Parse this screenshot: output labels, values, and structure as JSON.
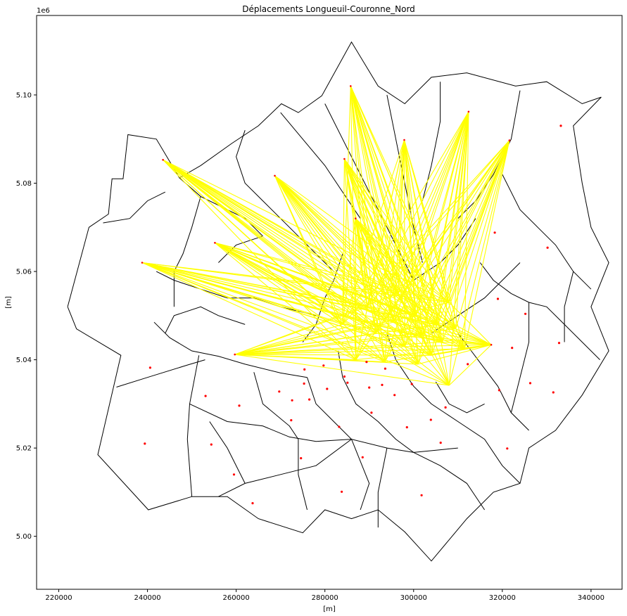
{
  "chart_data": {
    "type": "scatter",
    "title": "Déplacements Longueuil-Couronne_Nord",
    "xlabel": "[m]",
    "ylabel": "[m]",
    "y_offset_label": "1e6",
    "xlim": [
      215000,
      347000
    ],
    "ylim": [
      4988000,
      5118000
    ],
    "x_ticks": [
      220000,
      240000,
      260000,
      280000,
      300000,
      320000,
      340000
    ],
    "x_tick_labels": [
      "220000",
      "240000",
      "260000",
      "280000",
      "300000",
      "320000",
      "340000"
    ],
    "y_ticks": [
      5000000,
      5020000,
      5040000,
      5060000,
      5080000,
      5100000
    ],
    "y_tick_labels": [
      "5.00",
      "5.02",
      "5.04",
      "5.06",
      "5.08",
      "5.10"
    ],
    "grid": false,
    "colors": {
      "flow_lines": "#ffff00",
      "centroids": "#ff0000",
      "boundaries": "#000000"
    },
    "origins": [
      {
        "x": 243500,
        "y": 5085300
      },
      {
        "x": 238800,
        "y": 5062000
      },
      {
        "x": 255200,
        "y": 5066500
      },
      {
        "x": 268700,
        "y": 5081700
      },
      {
        "x": 285800,
        "y": 5102000
      },
      {
        "x": 284400,
        "y": 5085500
      },
      {
        "x": 297900,
        "y": 5089800
      },
      {
        "x": 312400,
        "y": 5096200
      },
      {
        "x": 321600,
        "y": 5089700
      },
      {
        "x": 259700,
        "y": 5041200
      },
      {
        "x": 286900,
        "y": 5072000
      },
      {
        "x": 317500,
        "y": 5043400
      }
    ],
    "destinations": [
      {
        "x": 287000,
        "y": 5040000
      },
      {
        "x": 291500,
        "y": 5046000
      },
      {
        "x": 295500,
        "y": 5048500
      },
      {
        "x": 298000,
        "y": 5043000
      },
      {
        "x": 300500,
        "y": 5050000
      },
      {
        "x": 302000,
        "y": 5045500
      },
      {
        "x": 304000,
        "y": 5041000
      },
      {
        "x": 305500,
        "y": 5048000
      },
      {
        "x": 306500,
        "y": 5044000
      },
      {
        "x": 308000,
        "y": 5053000
      },
      {
        "x": 309500,
        "y": 5047000
      },
      {
        "x": 301000,
        "y": 5039000
      },
      {
        "x": 308000,
        "y": 5034200
      },
      {
        "x": 296500,
        "y": 5055000
      },
      {
        "x": 289500,
        "y": 5052000
      },
      {
        "x": 311500,
        "y": 5042500
      },
      {
        "x": 293500,
        "y": 5039500
      },
      {
        "x": 284000,
        "y": 5048000
      }
    ],
    "centroids": [
      {
        "x": 333200,
        "y": 5093000
      },
      {
        "x": 318300,
        "y": 5068800
      },
      {
        "x": 330200,
        "y": 5065400
      },
      {
        "x": 319000,
        "y": 5053800
      },
      {
        "x": 325200,
        "y": 5050400
      },
      {
        "x": 332800,
        "y": 5043800
      },
      {
        "x": 322200,
        "y": 5042700
      },
      {
        "x": 326300,
        "y": 5034700
      },
      {
        "x": 331500,
        "y": 5032600
      },
      {
        "x": 319300,
        "y": 5033100
      },
      {
        "x": 321100,
        "y": 5019900
      },
      {
        "x": 306100,
        "y": 5021200
      },
      {
        "x": 303900,
        "y": 5026400
      },
      {
        "x": 298500,
        "y": 5024700
      },
      {
        "x": 301800,
        "y": 5009300
      },
      {
        "x": 283800,
        "y": 5010100
      },
      {
        "x": 288500,
        "y": 5017900
      },
      {
        "x": 290500,
        "y": 5028000
      },
      {
        "x": 283200,
        "y": 5024800
      },
      {
        "x": 272400,
        "y": 5026300
      },
      {
        "x": 274600,
        "y": 5017700
      },
      {
        "x": 263700,
        "y": 5007500
      },
      {
        "x": 259500,
        "y": 5014000
      },
      {
        "x": 254400,
        "y": 5020800
      },
      {
        "x": 239400,
        "y": 5021000
      },
      {
        "x": 240600,
        "y": 5038200
      },
      {
        "x": 253100,
        "y": 5031800
      },
      {
        "x": 260700,
        "y": 5029600
      },
      {
        "x": 269700,
        "y": 5032800
      },
      {
        "x": 272600,
        "y": 5030800
      },
      {
        "x": 276500,
        "y": 5031000
      },
      {
        "x": 280500,
        "y": 5033400
      },
      {
        "x": 285100,
        "y": 5034800
      },
      {
        "x": 290000,
        "y": 5033700
      },
      {
        "x": 292900,
        "y": 5034300
      },
      {
        "x": 295700,
        "y": 5032000
      },
      {
        "x": 299600,
        "y": 5034500
      },
      {
        "x": 307200,
        "y": 5029200
      },
      {
        "x": 312200,
        "y": 5039000
      },
      {
        "x": 275400,
        "y": 5037800
      },
      {
        "x": 279700,
        "y": 5038700
      },
      {
        "x": 293600,
        "y": 5038000
      },
      {
        "x": 284400,
        "y": 5036200
      },
      {
        "x": 275300,
        "y": 5034600
      },
      {
        "x": 289400,
        "y": 5039500
      }
    ],
    "boundary_outline": [
      [
        222000,
        5052000
      ],
      [
        226800,
        5070000
      ],
      [
        231200,
        5073000
      ],
      [
        232000,
        5081000
      ],
      [
        234500,
        5081000
      ],
      [
        235600,
        5091000
      ],
      [
        242000,
        5090000
      ],
      [
        247200,
        5081200
      ],
      [
        252000,
        5084000
      ],
      [
        259000,
        5089000
      ],
      [
        265000,
        5093000
      ],
      [
        270200,
        5098000
      ],
      [
        274000,
        5096000
      ],
      [
        279300,
        5099800
      ],
      [
        286000,
        5112000
      ],
      [
        292000,
        5102000
      ],
      [
        298000,
        5098000
      ],
      [
        304000,
        5104000
      ],
      [
        312000,
        5105000
      ],
      [
        323000,
        5102000
      ],
      [
        330000,
        5103000
      ],
      [
        338000,
        5098000
      ],
      [
        342300,
        5099500
      ],
      [
        336000,
        5093000
      ],
      [
        338000,
        5080000
      ],
      [
        340000,
        5070000
      ],
      [
        344000,
        5062000
      ],
      [
        340000,
        5052000
      ],
      [
        344000,
        5042000
      ],
      [
        338000,
        5032000
      ],
      [
        332000,
        5024000
      ],
      [
        326000,
        5020000
      ],
      [
        324000,
        5012000
      ],
      [
        318000,
        5010000
      ],
      [
        312000,
        5004000
      ],
      [
        304000,
        4994400
      ],
      [
        298000,
        5001000
      ],
      [
        292000,
        5006000
      ],
      [
        286000,
        5004000
      ],
      [
        280000,
        5006000
      ],
      [
        275000,
        5000800
      ],
      [
        265000,
        5004000
      ],
      [
        258000,
        5009000
      ],
      [
        250000,
        5009000
      ],
      [
        240200,
        5006000
      ],
      [
        228800,
        5018500
      ],
      [
        234000,
        5041000
      ],
      [
        224000,
        5047000
      ],
      [
        222000,
        5052000
      ]
    ],
    "boundary_lines": [
      [
        [
          233000,
          5033800
        ],
        [
          240000,
          5036000
        ],
        [
          249000,
          5038800
        ],
        [
          253000,
          5040000
        ]
      ],
      [
        [
          241500,
          5048500
        ],
        [
          245000,
          5045000
        ],
        [
          250000,
          5042000
        ],
        [
          256000,
          5040800
        ],
        [
          262000,
          5039000
        ],
        [
          270000,
          5037000
        ],
        [
          276000,
          5036000
        ]
      ],
      [
        [
          251600,
          5041000
        ],
        [
          249500,
          5030000
        ],
        [
          249000,
          5022000
        ],
        [
          250000,
          5009000
        ]
      ],
      [
        [
          249500,
          5030000
        ],
        [
          258000,
          5026000
        ],
        [
          266000,
          5025000
        ],
        [
          272000,
          5022500
        ],
        [
          278000,
          5021500
        ],
        [
          286000,
          5022000
        ],
        [
          294000,
          5020000
        ],
        [
          300000,
          5019000
        ],
        [
          310000,
          5020000
        ]
      ],
      [
        [
          256000,
          5009000
        ],
        [
          262000,
          5012000
        ],
        [
          270000,
          5014000
        ],
        [
          278000,
          5016000
        ],
        [
          286000,
          5022000
        ]
      ],
      [
        [
          254000,
          5026000
        ],
        [
          258000,
          5020000
        ],
        [
          262000,
          5012000
        ]
      ],
      [
        [
          264000,
          5037200
        ],
        [
          266000,
          5030000
        ],
        [
          272000,
          5025000
        ],
        [
          274000,
          5022000
        ]
      ],
      [
        [
          276000,
          5036000
        ],
        [
          278000,
          5030000
        ],
        [
          282000,
          5026000
        ],
        [
          286000,
          5022000
        ],
        [
          290000,
          5012000
        ],
        [
          288000,
          5006000
        ]
      ],
      [
        [
          283000,
          5042000
        ],
        [
          284000,
          5036000
        ],
        [
          287000,
          5030000
        ],
        [
          292000,
          5026000
        ],
        [
          296000,
          5022000
        ],
        [
          300000,
          5019000
        ]
      ],
      [
        [
          294000,
          5046000
        ],
        [
          296000,
          5040000
        ],
        [
          300000,
          5034000
        ],
        [
          304000,
          5030000
        ],
        [
          310000,
          5026000
        ],
        [
          316000,
          5022000
        ],
        [
          320000,
          5016000
        ],
        [
          324000,
          5012000
        ]
      ],
      [
        [
          300000,
          5019000
        ],
        [
          306000,
          5016000
        ],
        [
          312000,
          5012000
        ],
        [
          316000,
          5006000
        ]
      ],
      [
        [
          305000,
          5035000
        ],
        [
          308000,
          5030000
        ],
        [
          312000,
          5028000
        ],
        [
          316000,
          5030000
        ]
      ],
      [
        [
          310000,
          5046000
        ],
        [
          313000,
          5042000
        ],
        [
          316000,
          5038000
        ],
        [
          319000,
          5034000
        ],
        [
          322000,
          5028000
        ],
        [
          326000,
          5024000
        ]
      ],
      [
        [
          315000,
          5062000
        ],
        [
          318000,
          5058000
        ],
        [
          322000,
          5055000
        ],
        [
          326000,
          5053000
        ],
        [
          330000,
          5052000
        ],
        [
          334000,
          5048000
        ],
        [
          338000,
          5044000
        ],
        [
          342000,
          5040000
        ]
      ],
      [
        [
          320000,
          5082000
        ],
        [
          324000,
          5074000
        ],
        [
          328000,
          5070000
        ],
        [
          332000,
          5066000
        ],
        [
          336000,
          5060000
        ],
        [
          340000,
          5056000
        ]
      ],
      [
        [
          324000,
          5101000
        ],
        [
          322000,
          5090000
        ],
        [
          318000,
          5082000
        ],
        [
          314000,
          5076000
        ],
        [
          310000,
          5072000
        ]
      ],
      [
        [
          306000,
          5103000
        ],
        [
          306000,
          5094000
        ],
        [
          304000,
          5084000
        ],
        [
          302000,
          5076000
        ]
      ],
      [
        [
          294000,
          5100000
        ],
        [
          296000,
          5090000
        ],
        [
          298000,
          5080000
        ],
        [
          300000,
          5070000
        ],
        [
          302000,
          5062000
        ]
      ],
      [
        [
          280000,
          5098000
        ],
        [
          284000,
          5090000
        ],
        [
          288000,
          5082000
        ],
        [
          292000,
          5074000
        ],
        [
          296000,
          5066000
        ],
        [
          300000,
          5058000
        ]
      ],
      [
        [
          270000,
          5096000
        ],
        [
          275000,
          5090000
        ],
        [
          280000,
          5084000
        ],
        [
          284000,
          5078000
        ],
        [
          288000,
          5072000
        ]
      ],
      [
        [
          262000,
          5092000
        ],
        [
          260000,
          5086000
        ],
        [
          262000,
          5080000
        ],
        [
          266000,
          5076000
        ],
        [
          270000,
          5072000
        ],
        [
          274000,
          5068000
        ],
        [
          278000,
          5064000
        ],
        [
          282000,
          5060000
        ]
      ],
      [
        [
          247200,
          5081200
        ],
        [
          252000,
          5077000
        ],
        [
          258000,
          5074000
        ],
        [
          262000,
          5072000
        ],
        [
          266000,
          5068000
        ]
      ],
      [
        [
          230000,
          5071000
        ],
        [
          236000,
          5072000
        ],
        [
          240000,
          5076000
        ],
        [
          244000,
          5078000
        ]
      ],
      [
        [
          252000,
          5077000
        ],
        [
          250000,
          5070000
        ],
        [
          248000,
          5064000
        ],
        [
          246000,
          5060000
        ],
        [
          246000,
          5052000
        ]
      ],
      [
        [
          242000,
          5060000
        ],
        [
          246000,
          5058000
        ],
        [
          252000,
          5056000
        ],
        [
          258000,
          5054000
        ],
        [
          264000,
          5054000
        ],
        [
          270000,
          5052000
        ],
        [
          278000,
          5050000
        ]
      ],
      [
        [
          256000,
          5062000
        ],
        [
          260000,
          5066000
        ],
        [
          266000,
          5068000
        ]
      ],
      [
        [
          244000,
          5046000
        ],
        [
          246000,
          5050000
        ],
        [
          252000,
          5052000
        ],
        [
          256000,
          5050000
        ],
        [
          262000,
          5048000
        ]
      ],
      [
        [
          275000,
          5044000
        ],
        [
          278000,
          5048000
        ],
        [
          280000,
          5054000
        ],
        [
          282000,
          5058000
        ],
        [
          284000,
          5064000
        ]
      ],
      [
        [
          300000,
          5058000
        ],
        [
          306000,
          5062000
        ],
        [
          310000,
          5066000
        ],
        [
          314000,
          5072000
        ]
      ],
      [
        [
          304000,
          5046000
        ],
        [
          310000,
          5050000
        ],
        [
          316000,
          5054000
        ],
        [
          320000,
          5058000
        ],
        [
          324000,
          5062000
        ]
      ],
      [
        [
          326000,
          5053000
        ],
        [
          326000,
          5044000
        ],
        [
          324000,
          5036000
        ],
        [
          322000,
          5028000
        ]
      ],
      [
        [
          336000,
          5060000
        ],
        [
          334000,
          5052000
        ],
        [
          334000,
          5044000
        ]
      ],
      [
        [
          294000,
          5020000
        ],
        [
          292000,
          5010000
        ],
        [
          292000,
          5002000
        ]
      ],
      [
        [
          274000,
          5022000
        ],
        [
          274000,
          5014000
        ],
        [
          276000,
          5006000
        ]
      ]
    ]
  }
}
